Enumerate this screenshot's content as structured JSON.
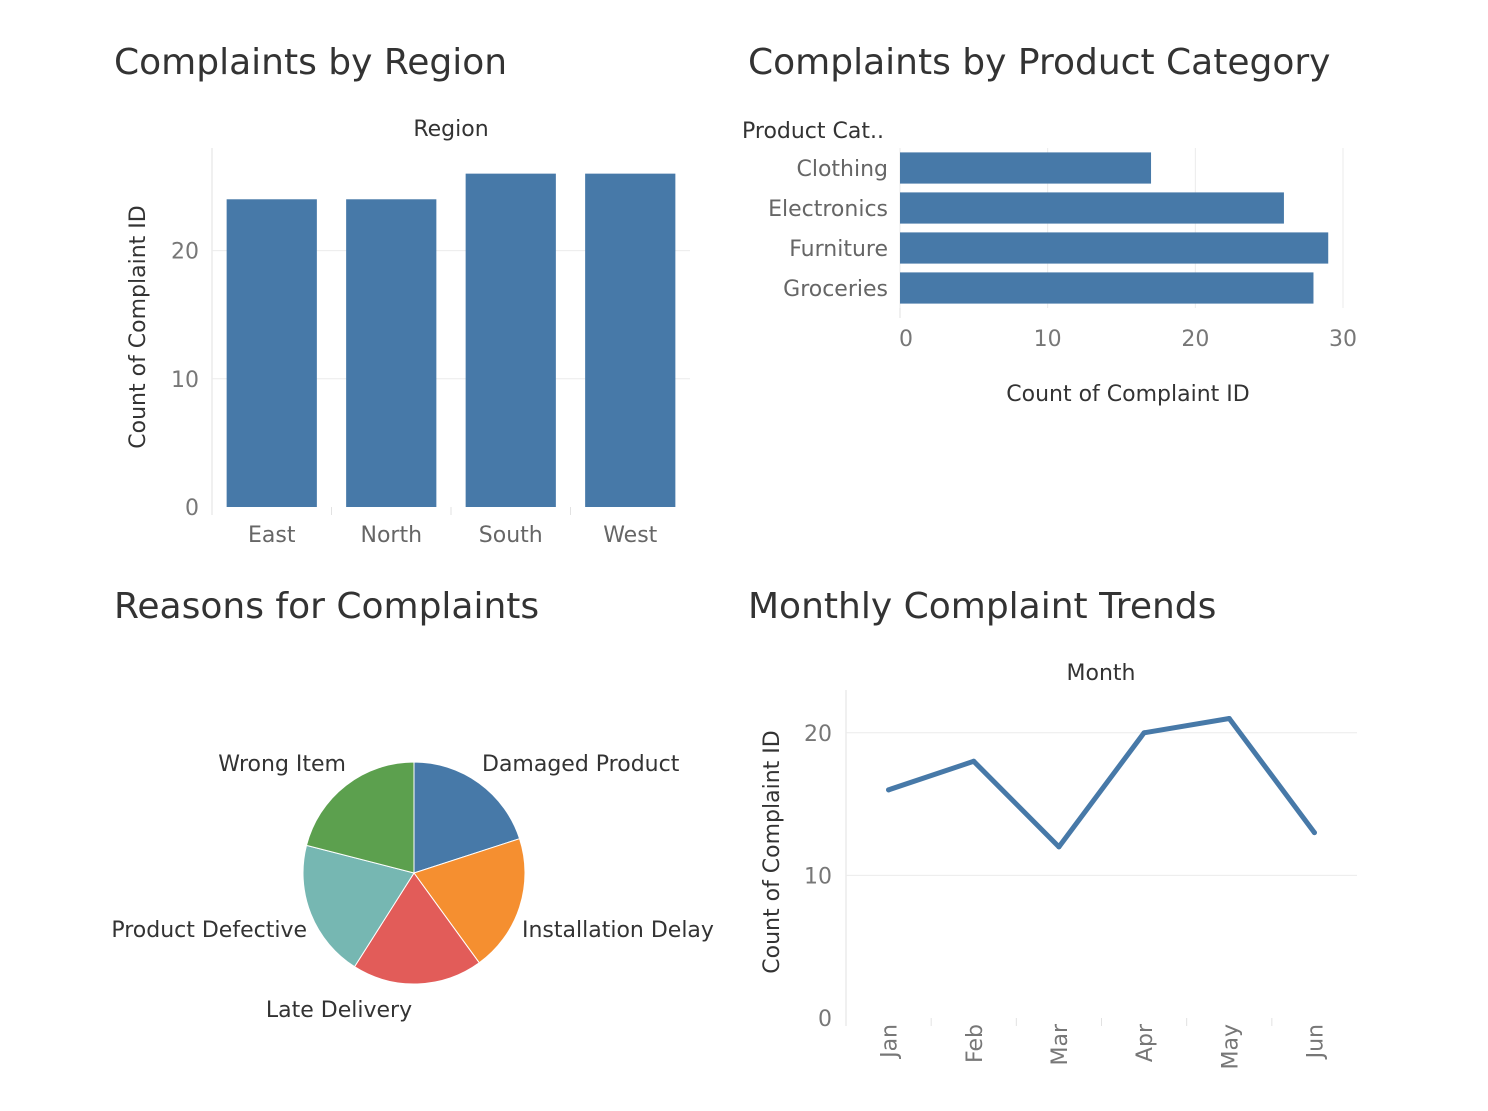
{
  "dashboard": {
    "region_title": "Complaints by Region",
    "category_title": "Complaints by Product Category",
    "reasons_title": "Reasons for Complaints",
    "monthly_title": "Monthly Complaint Trends"
  },
  "colors": {
    "bar": "#4779a8",
    "line": "#4779a8",
    "pie": [
      "#4779a8",
      "#f58f30",
      "#e25c59",
      "#76b7b2",
      "#5ca04e"
    ]
  },
  "chart_data": [
    {
      "id": "region",
      "type": "bar",
      "title": "Complaints by Region",
      "xlabel": "Region",
      "ylabel": "Count of Complaint ID",
      "categories": [
        "East",
        "North",
        "South",
        "West"
      ],
      "values": [
        24,
        24,
        26,
        26
      ],
      "ylim": [
        0,
        28
      ],
      "yticks": [
        0,
        10,
        20
      ],
      "grid": true
    },
    {
      "id": "category",
      "type": "bar",
      "orientation": "horizontal",
      "title": "Complaints by Product Category",
      "ylabel": "Product Cat..",
      "xlabel": "Count of Complaint ID",
      "categories": [
        "Clothing",
        "Electronics",
        "Furniture",
        "Groceries"
      ],
      "values": [
        17,
        26,
        29,
        28
      ],
      "xlim": [
        0,
        30
      ],
      "xticks": [
        0,
        10,
        20,
        30
      ],
      "grid": true
    },
    {
      "id": "reasons",
      "type": "pie",
      "title": "Reasons for Complaints",
      "labels": [
        "Damaged Product",
        "Installation Delay",
        "Late Delivery",
        "Product Defective",
        "Wrong Item"
      ],
      "values": [
        20,
        20,
        19,
        20,
        21
      ]
    },
    {
      "id": "monthly",
      "type": "line",
      "title": "Monthly Complaint Trends",
      "xlabel": "Month",
      "ylabel": "Count of Complaint ID",
      "categories": [
        "Jan",
        "Feb",
        "Mar",
        "Apr",
        "May",
        "Jun"
      ],
      "values": [
        16,
        18,
        12,
        20,
        21,
        13
      ],
      "ylim": [
        0,
        23
      ],
      "yticks": [
        0,
        10,
        20
      ],
      "grid": true
    }
  ]
}
